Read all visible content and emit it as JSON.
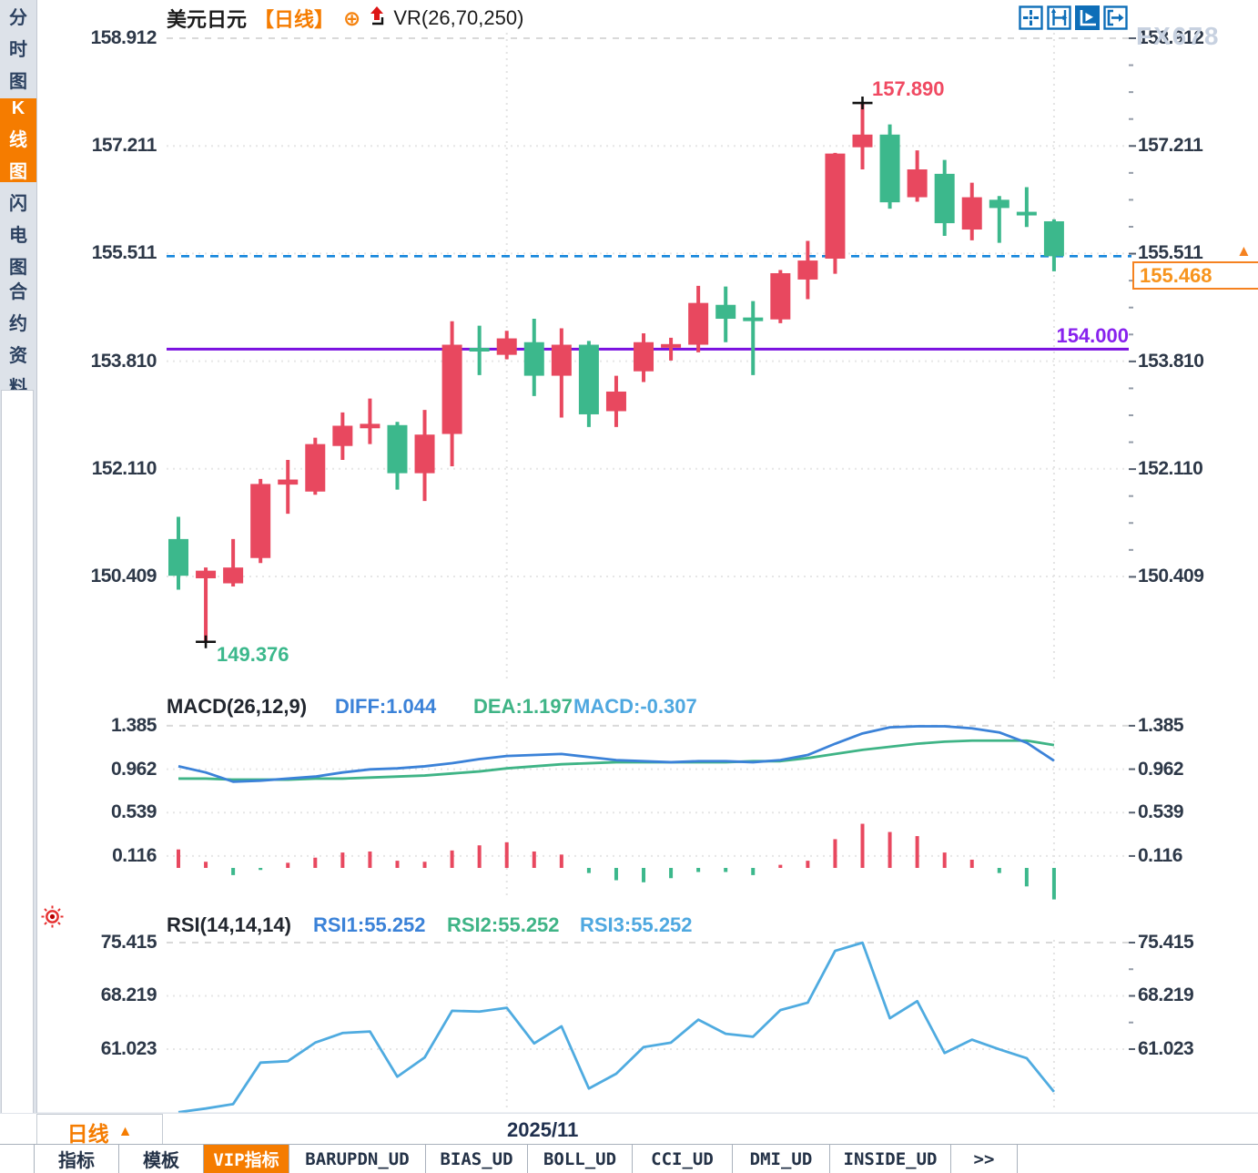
{
  "sidebar": {
    "items": [
      {
        "label": "分时图",
        "active": false
      },
      {
        "label": "K线图",
        "active": true
      },
      {
        "label": "闪电图",
        "active": false
      },
      {
        "label": "合约资料",
        "active": false
      }
    ]
  },
  "header": {
    "symbol": "美元日元",
    "period_tag": "【日线】",
    "plus_icon": "⊕",
    "indicator": "VR(26,70,250)"
  },
  "toolbar": {
    "icons": [
      "crosshair-icon",
      "axis-scale-icon",
      "axis-play-icon",
      "exit-right-icon"
    ],
    "active_index": 2
  },
  "price_axis": {
    "labels": [
      "158.912",
      "157.211",
      "155.511",
      "153.810",
      "152.110",
      "150.409"
    ]
  },
  "macd_panel": {
    "title": "MACD(26,12,9)",
    "diff_label": "DIFF:1.044",
    "dea_label": "DEA:1.197",
    "macd_label": "MACD:-0.307",
    "axis_labels": [
      "1.385",
      "0.962",
      "0.539",
      "0.116"
    ]
  },
  "rsi_panel": {
    "title": "RSI(14,14,14)",
    "rsi1_label": "RSI1:55.252",
    "rsi2_label": "RSI2:55.252",
    "rsi3_label": "RSI3:55.252",
    "axis_labels": [
      "75.415",
      "68.219",
      "61.023"
    ]
  },
  "annotations": {
    "high_price": "157.890",
    "low_price": "149.376",
    "purple_level": "154.000",
    "last_price": "155.468",
    "tag_arrow": "▲"
  },
  "bottom": {
    "period_button": "日线",
    "period_arrow": "▲",
    "date_label": "2025/11",
    "watermark": "FX678",
    "tabs": [
      {
        "label": "指标",
        "active": false
      },
      {
        "label": "模板",
        "active": false
      },
      {
        "label": "VIP指标",
        "active": true
      },
      {
        "label": "BARUPDN_UD",
        "active": false
      },
      {
        "label": "BIAS_UD",
        "active": false
      },
      {
        "label": "BOLL_UD",
        "active": false
      },
      {
        "label": "CCI_UD",
        "active": false
      },
      {
        "label": "DMI_UD",
        "active": false
      },
      {
        "label": "INSIDE_UD",
        "active": false
      },
      {
        "label": ">>",
        "active": false
      }
    ]
  },
  "colors": {
    "up": "#e8485f",
    "down": "#3cb88c",
    "accent_orange": "#f57c00",
    "dashed_blue": "#1586dc",
    "purple_line": "#7a10e0",
    "diff_blue": "#3b82d8",
    "dea_green": "#3fb486",
    "rsi_blue": "#4fabe0",
    "grid": "#e6e6e6",
    "axis_text": "#2d3848",
    "toolbar_blue": "#0e6eb8"
  },
  "chart_data": [
    {
      "type": "candlestick",
      "title": "USDJPY daily",
      "y_ticks": [
        158.912,
        157.211,
        155.511,
        153.81,
        152.11,
        150.409
      ],
      "ylim": [
        149.2,
        159.1
      ],
      "x_gridline_indices": [
        12,
        32
      ],
      "x_gridline_label": "2025/11",
      "high_marker": {
        "index": 25,
        "price": 157.89
      },
      "low_marker": {
        "index": 1,
        "price": 149.376
      },
      "last_close_line": 155.468,
      "horizontal_level": 154.0,
      "candles_ohlc": [
        [
          151.0,
          151.35,
          150.2,
          150.42
        ],
        [
          150.38,
          150.55,
          149.376,
          150.5
        ],
        [
          150.3,
          151.0,
          150.25,
          150.55
        ],
        [
          150.7,
          151.95,
          150.62,
          151.87
        ],
        [
          151.86,
          152.25,
          151.4,
          151.94
        ],
        [
          151.75,
          152.6,
          151.7,
          152.5
        ],
        [
          152.47,
          153.0,
          152.25,
          152.79
        ],
        [
          152.75,
          153.22,
          152.5,
          152.82
        ],
        [
          152.8,
          152.85,
          151.78,
          152.04
        ],
        [
          152.04,
          153.04,
          151.6,
          152.65
        ],
        [
          152.66,
          154.44,
          152.15,
          154.07
        ],
        [
          154.02,
          154.37,
          153.59,
          153.98
        ],
        [
          153.91,
          154.29,
          153.84,
          154.17
        ],
        [
          154.11,
          154.48,
          153.26,
          153.58
        ],
        [
          153.58,
          154.33,
          152.92,
          154.07
        ],
        [
          154.07,
          154.13,
          152.77,
          152.97
        ],
        [
          153.02,
          153.58,
          152.77,
          153.33
        ],
        [
          153.65,
          154.25,
          153.48,
          154.11
        ],
        [
          154.03,
          154.18,
          153.82,
          154.08
        ],
        [
          154.07,
          155.0,
          153.95,
          154.73
        ],
        [
          154.7,
          154.99,
          154.11,
          154.48
        ],
        [
          154.5,
          154.76,
          153.59,
          154.45
        ],
        [
          154.47,
          155.25,
          154.41,
          155.2
        ],
        [
          155.1,
          155.71,
          154.79,
          155.4
        ],
        [
          155.43,
          157.1,
          155.19,
          157.09
        ],
        [
          157.19,
          157.89,
          156.84,
          157.39
        ],
        [
          157.39,
          157.55,
          156.22,
          156.32
        ],
        [
          156.4,
          157.14,
          156.33,
          156.84
        ],
        [
          156.77,
          156.99,
          155.79,
          155.99
        ],
        [
          155.89,
          156.63,
          155.72,
          156.4
        ],
        [
          156.36,
          156.42,
          155.68,
          156.23
        ],
        [
          156.17,
          156.56,
          155.93,
          156.13
        ],
        [
          156.02,
          156.05,
          155.23,
          155.468
        ]
      ]
    },
    {
      "type": "line+bar",
      "title": "MACD(26,12,9)",
      "y_ticks": [
        1.385,
        0.962,
        0.539,
        0.116
      ],
      "series": [
        {
          "name": "DIFF",
          "values": [
            0.99,
            0.93,
            0.84,
            0.85,
            0.87,
            0.89,
            0.93,
            0.96,
            0.97,
            0.99,
            1.02,
            1.06,
            1.09,
            1.1,
            1.11,
            1.08,
            1.05,
            1.04,
            1.03,
            1.04,
            1.04,
            1.03,
            1.05,
            1.1,
            1.21,
            1.31,
            1.37,
            1.38,
            1.38,
            1.36,
            1.32,
            1.22,
            1.044
          ]
        },
        {
          "name": "DEA",
          "values": [
            0.87,
            0.87,
            0.86,
            0.86,
            0.86,
            0.87,
            0.87,
            0.88,
            0.89,
            0.9,
            0.92,
            0.94,
            0.97,
            0.99,
            1.01,
            1.02,
            1.03,
            1.03,
            1.03,
            1.03,
            1.03,
            1.04,
            1.04,
            1.07,
            1.11,
            1.15,
            1.18,
            1.21,
            1.23,
            1.24,
            1.24,
            1.24,
            1.197
          ]
        },
        {
          "name": "MACD_hist",
          "values": [
            0.18,
            0.06,
            -0.07,
            -0.02,
            0.05,
            0.1,
            0.15,
            0.16,
            0.07,
            0.06,
            0.17,
            0.22,
            0.25,
            0.16,
            0.13,
            -0.05,
            -0.12,
            -0.14,
            -0.1,
            -0.04,
            -0.04,
            -0.07,
            0.03,
            0.07,
            0.28,
            0.43,
            0.35,
            0.31,
            0.15,
            0.08,
            -0.05,
            -0.18,
            -0.307
          ]
        }
      ]
    },
    {
      "type": "line",
      "title": "RSI(14,14,14)",
      "y_ticks": [
        75.415,
        68.219,
        61.023
      ],
      "series": [
        {
          "name": "RSI",
          "values": [
            52.5,
            53.0,
            53.6,
            59.2,
            59.4,
            61.9,
            63.2,
            63.4,
            57.3,
            59.9,
            66.2,
            66.1,
            66.6,
            61.8,
            64.1,
            55.7,
            57.7,
            61.3,
            61.9,
            65.0,
            63.1,
            62.7,
            66.3,
            67.3,
            74.3,
            75.4,
            65.2,
            67.5,
            60.5,
            62.3,
            61.0,
            59.8,
            55.252
          ]
        }
      ]
    }
  ]
}
